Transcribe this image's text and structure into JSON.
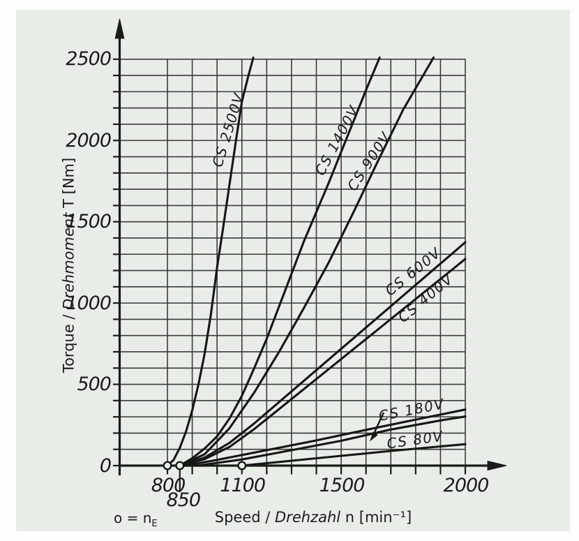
{
  "colors": {
    "panel_bg": "#e9ede7",
    "ink": "#1b1b1b",
    "grid": "#3a3a3a",
    "curve": "#161616"
  },
  "y_axis_title": {
    "pre": "Torque / ",
    "italic": "Drehmoment",
    "post": " T [Nm]"
  },
  "x_axis_title": {
    "pre": "Speed / ",
    "italic": "Drehzahl",
    "post": " n [min⁻¹]"
  },
  "engagement_note": {
    "pre": "o = n",
    "sub": "E"
  },
  "chart_data": {
    "type": "line",
    "title": "",
    "xlabel": "Speed / Drehzahl n [min⁻¹]",
    "ylabel": "Torque / Drehmoment T [Nm]",
    "grid": true,
    "legend": "inline-rotated-labels",
    "x_axis": {
      "min": 800,
      "max": 2000,
      "grid_step": 100,
      "labeled_ticks": [
        {
          "value": "800",
          "n": 800,
          "row": 0
        },
        {
          "value": "850",
          "n": 850,
          "row": 1
        },
        {
          "value": "1100",
          "n": 1100,
          "row": 0
        },
        {
          "value": "1500",
          "n": 1500,
          "row": 0
        },
        {
          "value": "2000",
          "n": 2000,
          "row": 0
        }
      ]
    },
    "y_axis": {
      "min": 0,
      "max": 2500,
      "grid_step": 100,
      "labeled_ticks": [
        {
          "value": "0",
          "t": 0
        },
        {
          "value": "500",
          "t": 500
        },
        {
          "value": "1000",
          "t": 1000
        },
        {
          "value": "1500",
          "t": 1500
        },
        {
          "value": "2000",
          "t": 2000
        },
        {
          "value": "2500",
          "t": 2500
        }
      ]
    },
    "engagement_points_n": [
      800,
      850,
      1100
    ],
    "series": [
      {
        "name": "CS 2500V",
        "points": [
          [
            800,
            0
          ],
          [
            825,
            35
          ],
          [
            850,
            110
          ],
          [
            875,
            210
          ],
          [
            900,
            340
          ],
          [
            925,
            500
          ],
          [
            950,
            690
          ],
          [
            975,
            930
          ],
          [
            1000,
            1220
          ],
          [
            1025,
            1470
          ],
          [
            1050,
            1730
          ],
          [
            1075,
            1990
          ],
          [
            1100,
            2240
          ],
          [
            1125,
            2390
          ],
          [
            1146,
            2510
          ]
        ],
        "label_pos": {
          "x": 327,
          "y": 186,
          "angle": -73
        }
      },
      {
        "name": "CS 1400V",
        "points": [
          [
            850,
            0
          ],
          [
            900,
            45
          ],
          [
            950,
            105
          ],
          [
            1000,
            180
          ],
          [
            1050,
            290
          ],
          [
            1100,
            430
          ],
          [
            1150,
            600
          ],
          [
            1200,
            780
          ],
          [
            1250,
            980
          ],
          [
            1300,
            1180
          ],
          [
            1350,
            1380
          ],
          [
            1400,
            1560
          ],
          [
            1450,
            1740
          ],
          [
            1500,
            1930
          ],
          [
            1550,
            2120
          ],
          [
            1600,
            2310
          ],
          [
            1655,
            2510
          ]
        ],
        "label_pos": {
          "x": 483,
          "y": 201,
          "angle": -62
        }
      },
      {
        "name": "CS 900V",
        "points": [
          [
            850,
            0
          ],
          [
            950,
            70
          ],
          [
            1050,
            230
          ],
          [
            1150,
            450
          ],
          [
            1250,
            700
          ],
          [
            1350,
            970
          ],
          [
            1450,
            1250
          ],
          [
            1550,
            1560
          ],
          [
            1650,
            1880
          ],
          [
            1750,
            2190
          ],
          [
            1872,
            2510
          ]
        ],
        "label_pos": {
          "x": 529,
          "y": 231,
          "angle": -57
        }
      },
      {
        "name": "CS 600V",
        "points": [
          [
            850,
            0
          ],
          [
            950,
            50
          ],
          [
            1050,
            140
          ],
          [
            1150,
            260
          ],
          [
            1250,
            391
          ],
          [
            1350,
            522
          ],
          [
            1450,
            653
          ],
          [
            1550,
            784
          ],
          [
            1650,
            915
          ],
          [
            1750,
            1046
          ],
          [
            1850,
            1177
          ],
          [
            1950,
            1308
          ],
          [
            2000,
            1374
          ]
        ],
        "label_pos": {
          "x": 592,
          "y": 389,
          "angle": -39
        }
      },
      {
        "name": "CS 400V",
        "points": [
          [
            850,
            0
          ],
          [
            950,
            40
          ],
          [
            1050,
            115
          ],
          [
            1150,
            225
          ],
          [
            1250,
            348
          ],
          [
            1350,
            471
          ],
          [
            1450,
            594
          ],
          [
            1550,
            717
          ],
          [
            1650,
            840
          ],
          [
            1750,
            963
          ],
          [
            1850,
            1086
          ],
          [
            1950,
            1209
          ],
          [
            2000,
            1271
          ]
        ],
        "label_pos": {
          "x": 610,
          "y": 427,
          "angle": -40
        }
      },
      {
        "name": "CS 180V",
        "points": [
          [
            870,
            0
          ],
          [
            1000,
            35
          ],
          [
            1200,
            95
          ],
          [
            1400,
            155
          ],
          [
            1600,
            220
          ],
          [
            1800,
            283
          ],
          [
            2000,
            345
          ]
        ],
        "label_pos": {
          "x": 590,
          "y": 587,
          "angle": -11
        }
      },
      {
        "name": "CS 180V (lower line)",
        "points": [
          [
            920,
            0
          ],
          [
            1100,
            38
          ],
          [
            1300,
            95
          ],
          [
            1500,
            153
          ],
          [
            1700,
            222
          ],
          [
            1900,
            278
          ],
          [
            2000,
            302
          ]
        ],
        "label_pos": null
      },
      {
        "name": "CS 80V",
        "points": [
          [
            1100,
            0
          ],
          [
            1300,
            30
          ],
          [
            1500,
            60
          ],
          [
            1700,
            90
          ],
          [
            1900,
            118
          ],
          [
            2000,
            132
          ]
        ],
        "label_pos": {
          "x": 595,
          "y": 630,
          "angle": -8
        }
      }
    ]
  }
}
